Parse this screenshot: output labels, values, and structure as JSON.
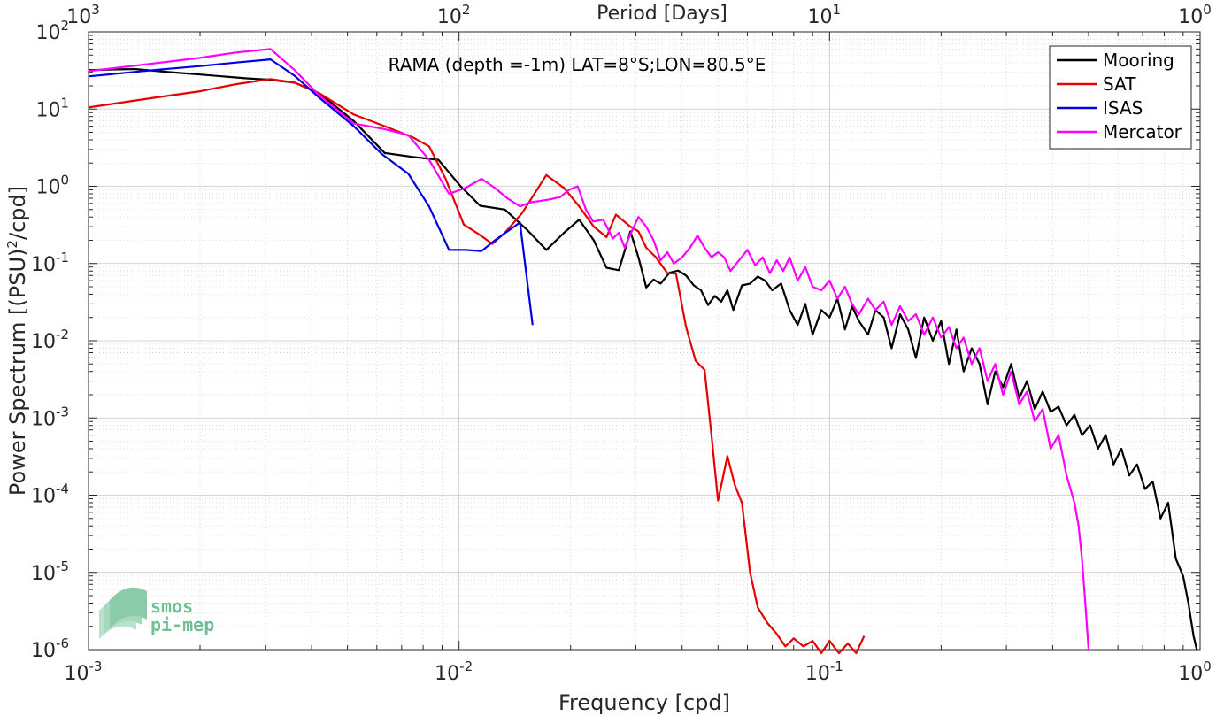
{
  "chart_data": {
    "type": "line",
    "title": "",
    "annotation": "RAMA (depth =-1m) LAT=8°S;LON=80.5°E",
    "xlabel": "Frequency [cpd]",
    "ylabel": "Power Spectrum [(PSU)²/cpd]",
    "ylabel_parts": {
      "main": "Power Spectrum [(PSU)",
      "sup": "2",
      "tail": "/cpd]"
    },
    "top_xlabel": "Period [Days]",
    "xscale": "log",
    "yscale": "log",
    "xlim": [
      0.001,
      1
    ],
    "ylim": [
      1e-06,
      100
    ],
    "grid": true,
    "legend_position": "top-right",
    "x_ticks": [
      {
        "base": "10",
        "exp": "-3"
      },
      {
        "base": "10",
        "exp": "-2"
      },
      {
        "base": "10",
        "exp": "-1"
      },
      {
        "base": "10",
        "exp": "0"
      }
    ],
    "top_ticks": [
      {
        "base": "10",
        "exp": "3"
      },
      {
        "base": "10",
        "exp": "2"
      },
      {
        "base": "10",
        "exp": "1"
      },
      {
        "base": "10",
        "exp": "0"
      }
    ],
    "y_ticks": [
      {
        "base": "10",
        "exp": "-6"
      },
      {
        "base": "10",
        "exp": "-5"
      },
      {
        "base": "10",
        "exp": "-4"
      },
      {
        "base": "10",
        "exp": "-3"
      },
      {
        "base": "10",
        "exp": "-2"
      },
      {
        "base": "10",
        "exp": "-1"
      },
      {
        "base": "10",
        "exp": "0"
      },
      {
        "base": "10",
        "exp": "1"
      },
      {
        "base": "10",
        "exp": "2"
      }
    ],
    "series": [
      {
        "name": "Mooring",
        "color": "#000000",
        "points": [
          [
            0.001,
            32
          ],
          [
            0.00133,
            33
          ],
          [
            0.00167,
            30
          ],
          [
            0.002,
            28
          ],
          [
            0.00267,
            25
          ],
          [
            0.0031,
            24
          ],
          [
            0.0036,
            22
          ],
          [
            0.0042,
            16
          ],
          [
            0.0052,
            7
          ],
          [
            0.0063,
            2.7
          ],
          [
            0.0075,
            2.4
          ],
          [
            0.0088,
            2.2
          ],
          [
            0.0101,
            1.0
          ],
          [
            0.0114,
            0.56
          ],
          [
            0.0133,
            0.5
          ],
          [
            0.0153,
            0.27
          ],
          [
            0.0172,
            0.15
          ],
          [
            0.0192,
            0.25
          ],
          [
            0.0211,
            0.37
          ],
          [
            0.0231,
            0.2
          ],
          [
            0.025,
            0.088
          ],
          [
            0.027,
            0.082
          ],
          [
            0.029,
            0.26
          ],
          [
            0.0305,
            0.12
          ],
          [
            0.032,
            0.049
          ],
          [
            0.0335,
            0.062
          ],
          [
            0.035,
            0.055
          ],
          [
            0.037,
            0.076
          ],
          [
            0.039,
            0.081
          ],
          [
            0.041,
            0.07
          ],
          [
            0.043,
            0.052
          ],
          [
            0.045,
            0.045
          ],
          [
            0.047,
            0.029
          ],
          [
            0.049,
            0.038
          ],
          [
            0.051,
            0.032
          ],
          [
            0.053,
            0.045
          ],
          [
            0.055,
            0.025
          ],
          [
            0.058,
            0.052
          ],
          [
            0.061,
            0.055
          ],
          [
            0.064,
            0.068
          ],
          [
            0.067,
            0.06
          ],
          [
            0.07,
            0.045
          ],
          [
            0.074,
            0.055
          ],
          [
            0.078,
            0.025
          ],
          [
            0.082,
            0.016
          ],
          [
            0.086,
            0.03
          ],
          [
            0.09,
            0.012
          ],
          [
            0.095,
            0.025
          ],
          [
            0.1,
            0.02
          ],
          [
            0.105,
            0.035
          ],
          [
            0.11,
            0.014
          ],
          [
            0.115,
            0.028
          ],
          [
            0.12,
            0.018
          ],
          [
            0.127,
            0.012
          ],
          [
            0.133,
            0.025
          ],
          [
            0.14,
            0.02
          ],
          [
            0.147,
            0.008
          ],
          [
            0.155,
            0.022
          ],
          [
            0.163,
            0.014
          ],
          [
            0.171,
            0.006
          ],
          [
            0.18,
            0.02
          ],
          [
            0.19,
            0.01
          ],
          [
            0.2,
            0.018
          ],
          [
            0.21,
            0.005
          ],
          [
            0.22,
            0.014
          ],
          [
            0.23,
            0.004
          ],
          [
            0.242,
            0.008
          ],
          [
            0.254,
            0.005
          ],
          [
            0.267,
            0.0015
          ],
          [
            0.28,
            0.004
          ],
          [
            0.294,
            0.0025
          ],
          [
            0.309,
            0.005
          ],
          [
            0.325,
            0.0018
          ],
          [
            0.341,
            0.003
          ],
          [
            0.358,
            0.0013
          ],
          [
            0.376,
            0.0022
          ],
          [
            0.395,
            0.0012
          ],
          [
            0.415,
            0.0014
          ],
          [
            0.436,
            0.0008
          ],
          [
            0.458,
            0.0011
          ],
          [
            0.48,
            0.0006
          ],
          [
            0.505,
            0.0008
          ],
          [
            0.53,
            0.0004
          ],
          [
            0.556,
            0.0006
          ],
          [
            0.584,
            0.00025
          ],
          [
            0.613,
            0.0004
          ],
          [
            0.644,
            0.00018
          ],
          [
            0.676,
            0.00025
          ],
          [
            0.71,
            0.00012
          ],
          [
            0.745,
            0.00015
          ],
          [
            0.782,
            5e-05
          ],
          [
            0.82,
            8e-05
          ],
          [
            0.86,
            1.5e-05
          ],
          [
            0.9,
            9e-06
          ],
          [
            0.93,
            4e-06
          ],
          [
            0.96,
            1.5e-06
          ],
          [
            0.98,
            1e-06
          ]
        ]
      },
      {
        "name": "SAT",
        "color": "#e60000",
        "points": [
          [
            0.001,
            10.5
          ],
          [
            0.0015,
            14
          ],
          [
            0.002,
            17
          ],
          [
            0.0025,
            21
          ],
          [
            0.0031,
            24.5
          ],
          [
            0.0036,
            22
          ],
          [
            0.0042,
            16
          ],
          [
            0.0052,
            8.5
          ],
          [
            0.0063,
            6
          ],
          [
            0.0075,
            4.3
          ],
          [
            0.0083,
            3.3
          ],
          [
            0.0092,
            1.25
          ],
          [
            0.0103,
            0.32
          ],
          [
            0.0113,
            0.24
          ],
          [
            0.0123,
            0.18
          ],
          [
            0.0133,
            0.25
          ],
          [
            0.0148,
            0.45
          ],
          [
            0.0172,
            1.4
          ],
          [
            0.0192,
            0.95
          ],
          [
            0.0211,
            0.55
          ],
          [
            0.0231,
            0.3
          ],
          [
            0.025,
            0.22
          ],
          [
            0.0265,
            0.43
          ],
          [
            0.029,
            0.3
          ],
          [
            0.0305,
            0.26
          ],
          [
            0.032,
            0.16
          ],
          [
            0.034,
            0.12
          ],
          [
            0.0365,
            0.075
          ],
          [
            0.0385,
            0.074
          ],
          [
            0.041,
            0.015
          ],
          [
            0.0435,
            0.0055
          ],
          [
            0.046,
            0.0042
          ],
          [
            0.048,
            0.0006
          ],
          [
            0.05,
            8.5e-05
          ],
          [
            0.053,
            0.00032
          ],
          [
            0.0555,
            0.000135
          ],
          [
            0.058,
            8e-05
          ],
          [
            0.061,
            1e-05
          ],
          [
            0.064,
            3.5e-06
          ],
          [
            0.068,
            2.2e-06
          ],
          [
            0.072,
            1.6e-06
          ],
          [
            0.076,
            1.1e-06
          ],
          [
            0.08,
            1.4e-06
          ],
          [
            0.085,
            1.1e-06
          ],
          [
            0.09,
            1.3e-06
          ],
          [
            0.095,
            9e-07
          ],
          [
            0.1,
            1.3e-06
          ],
          [
            0.106,
            9e-07
          ],
          [
            0.112,
            1.2e-06
          ],
          [
            0.118,
            9e-07
          ],
          [
            0.124,
            1.5e-06
          ]
        ]
      },
      {
        "name": "ISAS",
        "color": "#0000e6",
        "points": [
          [
            0.001,
            26.5
          ],
          [
            0.0015,
            32
          ],
          [
            0.002,
            36
          ],
          [
            0.0025,
            40
          ],
          [
            0.0031,
            44
          ],
          [
            0.0036,
            27
          ],
          [
            0.0042,
            14
          ],
          [
            0.0052,
            6
          ],
          [
            0.0062,
            2.6
          ],
          [
            0.0073,
            1.45
          ],
          [
            0.0083,
            0.55
          ],
          [
            0.0094,
            0.15
          ],
          [
            0.0104,
            0.15
          ],
          [
            0.0115,
            0.145
          ],
          [
            0.0125,
            0.2
          ],
          [
            0.0146,
            0.34
          ],
          [
            0.0158,
            0.016
          ]
        ]
      },
      {
        "name": "Mercator",
        "color": "#ff00ff",
        "points": [
          [
            0.001,
            31
          ],
          [
            0.0015,
            39
          ],
          [
            0.002,
            46
          ],
          [
            0.0025,
            54
          ],
          [
            0.0031,
            60
          ],
          [
            0.0036,
            32
          ],
          [
            0.0042,
            15
          ],
          [
            0.0052,
            6.5
          ],
          [
            0.0063,
            5.5
          ],
          [
            0.0073,
            4.6
          ],
          [
            0.0083,
            2.2
          ],
          [
            0.0094,
            0.8
          ],
          [
            0.0104,
            0.95
          ],
          [
            0.0115,
            1.25
          ],
          [
            0.0125,
            0.95
          ],
          [
            0.0135,
            0.7
          ],
          [
            0.0146,
            0.55
          ],
          [
            0.0156,
            0.62
          ],
          [
            0.0167,
            0.65
          ],
          [
            0.0177,
            0.68
          ],
          [
            0.0188,
            0.73
          ],
          [
            0.0198,
            0.9
          ],
          [
            0.0209,
            1.0
          ],
          [
            0.022,
            0.5
          ],
          [
            0.023,
            0.35
          ],
          [
            0.0245,
            0.37
          ],
          [
            0.026,
            0.21
          ],
          [
            0.027,
            0.25
          ],
          [
            0.028,
            0.16
          ],
          [
            0.029,
            0.24
          ],
          [
            0.0305,
            0.4
          ],
          [
            0.032,
            0.3
          ],
          [
            0.0335,
            0.2
          ],
          [
            0.035,
            0.11
          ],
          [
            0.0365,
            0.14
          ],
          [
            0.038,
            0.1
          ],
          [
            0.04,
            0.12
          ],
          [
            0.042,
            0.16
          ],
          [
            0.044,
            0.23
          ],
          [
            0.046,
            0.16
          ],
          [
            0.048,
            0.12
          ],
          [
            0.05,
            0.14
          ],
          [
            0.052,
            0.12
          ],
          [
            0.054,
            0.08
          ],
          [
            0.057,
            0.11
          ],
          [
            0.06,
            0.15
          ],
          [
            0.063,
            0.095
          ],
          [
            0.066,
            0.12
          ],
          [
            0.069,
            0.075
          ],
          [
            0.072,
            0.11
          ],
          [
            0.075,
            0.08
          ],
          [
            0.078,
            0.12
          ],
          [
            0.082,
            0.06
          ],
          [
            0.086,
            0.09
          ],
          [
            0.09,
            0.05
          ],
          [
            0.095,
            0.045
          ],
          [
            0.1,
            0.06
          ],
          [
            0.105,
            0.035
          ],
          [
            0.11,
            0.05
          ],
          [
            0.115,
            0.03
          ],
          [
            0.12,
            0.022
          ],
          [
            0.127,
            0.035
          ],
          [
            0.133,
            0.025
          ],
          [
            0.14,
            0.032
          ],
          [
            0.147,
            0.016
          ],
          [
            0.155,
            0.028
          ],
          [
            0.163,
            0.018
          ],
          [
            0.171,
            0.022
          ],
          [
            0.18,
            0.012
          ],
          [
            0.19,
            0.02
          ],
          [
            0.2,
            0.011
          ],
          [
            0.21,
            0.015
          ],
          [
            0.22,
            0.008
          ],
          [
            0.23,
            0.011
          ],
          [
            0.242,
            0.005
          ],
          [
            0.254,
            0.008
          ],
          [
            0.267,
            0.003
          ],
          [
            0.28,
            0.005
          ],
          [
            0.294,
            0.002
          ],
          [
            0.309,
            0.004
          ],
          [
            0.325,
            0.0015
          ],
          [
            0.341,
            0.0022
          ],
          [
            0.358,
            0.0009
          ],
          [
            0.376,
            0.0013
          ],
          [
            0.395,
            0.0004
          ],
          [
            0.415,
            0.0006
          ],
          [
            0.436,
            0.00018
          ],
          [
            0.458,
            8e-05
          ],
          [
            0.47,
            4e-05
          ],
          [
            0.48,
            1.5e-05
          ],
          [
            0.49,
            4e-06
          ],
          [
            0.5,
            1e-06
          ]
        ]
      }
    ]
  },
  "logo": {
    "line1": "smos",
    "line2": "pi-mep",
    "color": "#6dbf94"
  }
}
